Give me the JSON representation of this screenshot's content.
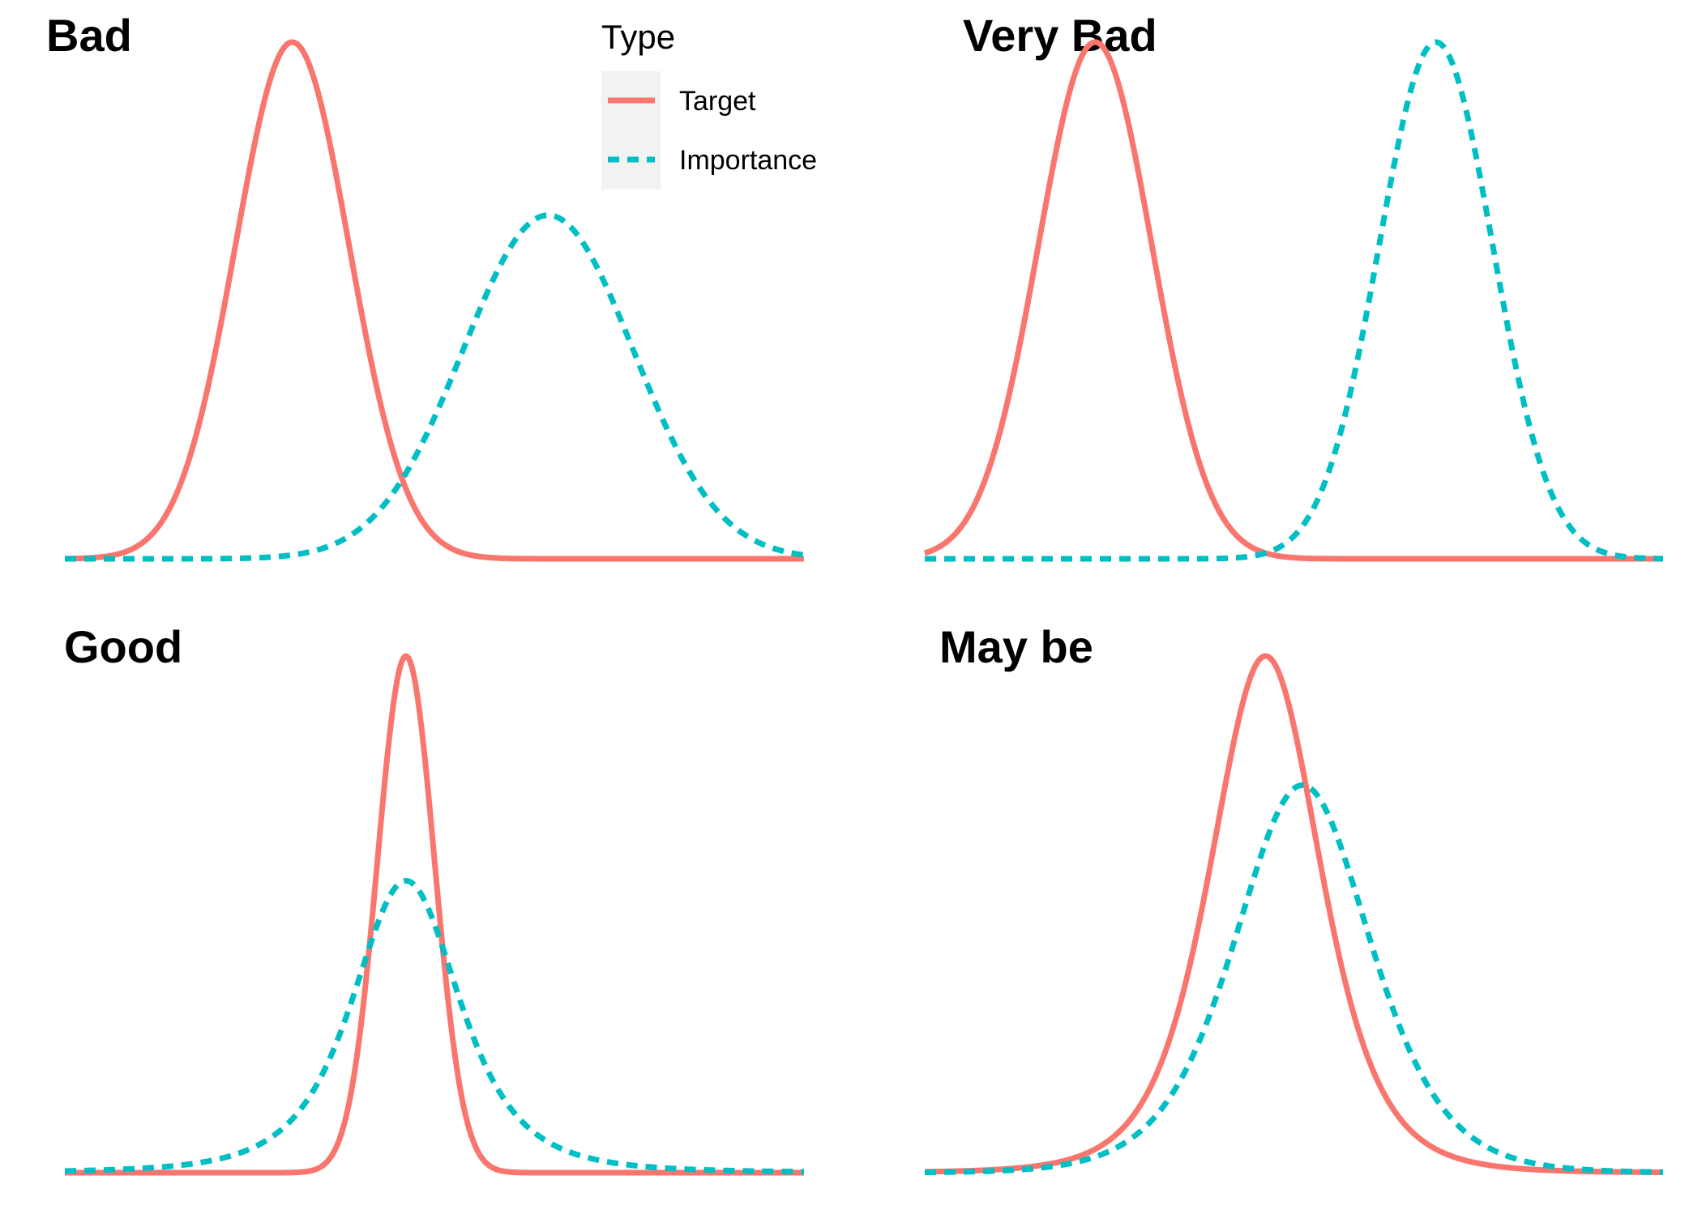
{
  "chart_data": [
    {
      "type": "line",
      "title": "Bad",
      "xlim": [
        -4,
        9
      ],
      "ylim": [
        0,
        1
      ],
      "grid": false,
      "axes": "none",
      "series": [
        {
          "name": "Target",
          "kind": "normal",
          "mean": 0,
          "sd": 1,
          "peak": 1.0,
          "color": "#F8766D",
          "dash": "solid"
        },
        {
          "name": "Importance",
          "kind": "normal",
          "mean": 4.5,
          "sd": 1.5,
          "peak": 0.665,
          "color": "#00BFC4",
          "dash": "dashed"
        }
      ]
    },
    {
      "type": "line",
      "title": "Very Bad",
      "xlim": [
        -3,
        10
      ],
      "ylim": [
        0,
        1
      ],
      "grid": false,
      "axes": "none",
      "series": [
        {
          "name": "Target",
          "kind": "normal",
          "mean": 0,
          "sd": 1,
          "peak": 1.0,
          "color": "#F8766D",
          "dash": "solid"
        },
        {
          "name": "Importance",
          "kind": "normal",
          "mean": 6,
          "sd": 1,
          "peak": 1.0,
          "color": "#00BFC4",
          "dash": "dashed"
        }
      ]
    },
    {
      "type": "line",
      "title": "Good",
      "xlim": [
        -6,
        7
      ],
      "ylim": [
        0,
        1
      ],
      "grid": false,
      "axes": "none",
      "series": [
        {
          "name": "Target",
          "kind": "normal",
          "mean": 0,
          "sd": 0.5,
          "peak": 1.0,
          "color": "#F8766D",
          "dash": "solid"
        },
        {
          "name": "Importance",
          "kind": "t",
          "mean": 0,
          "scale": 1,
          "df": 3,
          "peak": 0.565,
          "color": "#00BFC4",
          "dash": "dashed"
        }
      ]
    },
    {
      "type": "line",
      "title": "May be",
      "xlim": [
        -6,
        7
      ],
      "ylim": [
        0,
        1
      ],
      "grid": false,
      "axes": "none",
      "series": [
        {
          "name": "Target",
          "kind": "t",
          "mean": 0,
          "scale": 1,
          "df": 5,
          "peak": 1.0,
          "color": "#F8766D",
          "dash": "solid"
        },
        {
          "name": "Importance",
          "kind": "logistic",
          "mean": 0.65,
          "scale": 0.8,
          "peak": 0.75,
          "color": "#00BFC4",
          "dash": "dashed"
        }
      ]
    }
  ],
  "legend": {
    "title": "Type",
    "placement": "top-center",
    "items": [
      {
        "label": "Target",
        "color": "#F8766D",
        "dash": "solid"
      },
      {
        "label": "Importance",
        "color": "#00BFC4",
        "dash": "dashed"
      }
    ]
  }
}
